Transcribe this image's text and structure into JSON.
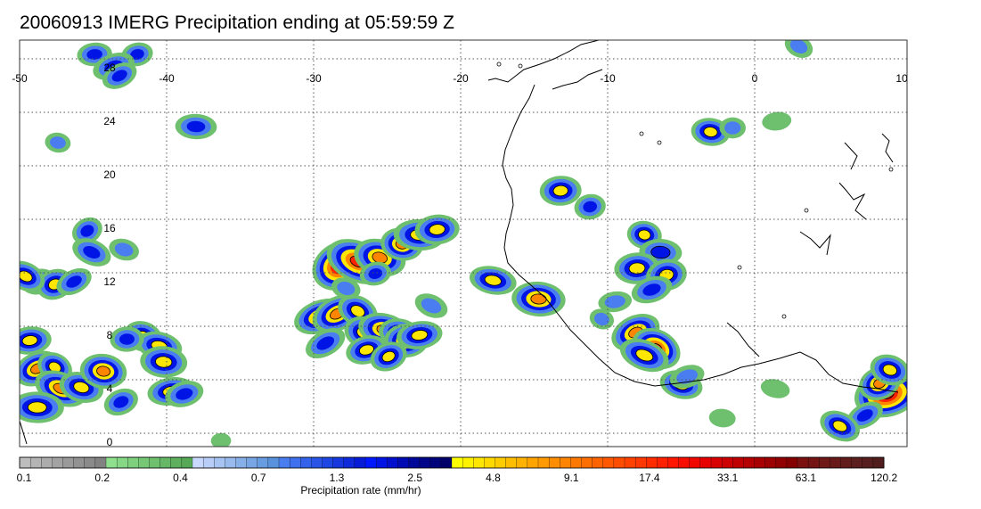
{
  "title": "20060913 IMERG Precipitation ending at 05:59:59 Z",
  "map": {
    "lon_range": [
      -50,
      10
    ],
    "lat_range": [
      -1,
      30
    ],
    "lon_ticks": [
      {
        "value": -50,
        "label": "-50"
      },
      {
        "value": -40,
        "label": "-40"
      },
      {
        "value": -30,
        "label": "-30"
      },
      {
        "value": -20,
        "label": "-20"
      },
      {
        "value": -10,
        "label": "-10"
      },
      {
        "value": 0,
        "label": "0"
      },
      {
        "value": 10,
        "label": "10"
      }
    ],
    "lat_ticks": [
      {
        "value": 0,
        "label": "0"
      },
      {
        "value": 4,
        "label": "4"
      },
      {
        "value": 8,
        "label": "8"
      },
      {
        "value": 12,
        "label": "12"
      },
      {
        "value": 16,
        "label": "16"
      },
      {
        "value": 20,
        "label": "20"
      },
      {
        "value": 24,
        "label": "24"
      },
      {
        "value": 28,
        "label": "28"
      }
    ],
    "grid": "dotted",
    "coastline_color": "#000000"
  },
  "colorbar": {
    "title": "Precipitation rate (mm/hr)",
    "tick_labels": [
      "0.1",
      "0.2",
      "0.4",
      "0.7",
      "1.3",
      "2.5",
      "4.8",
      "9.1",
      "17.4",
      "33.1",
      "63.1",
      "120.2"
    ],
    "colors": [
      "#bdbdbd",
      "#b4b4b4",
      "#acacac",
      "#a3a3a3",
      "#9a9a9a",
      "#929292",
      "#8a8a8a",
      "#828282",
      "#8ee08e",
      "#86d886",
      "#7ed07e",
      "#76c876",
      "#6ec06e",
      "#66b866",
      "#5eb05e",
      "#56a856",
      "#c8d8ff",
      "#b8cef8",
      "#a8c4f2",
      "#98baec",
      "#88b0e8",
      "#78a6e4",
      "#689ce0",
      "#5892dc",
      "#4a7ef0",
      "#3f70ee",
      "#3462ea",
      "#2954e6",
      "#1e46e2",
      "#1638de",
      "#0e2ada",
      "#061cd6",
      "#0018ff",
      "#0014e6",
      "#0010cc",
      "#000cb3",
      "#00089a",
      "#00068a",
      "#00047a",
      "#00026a",
      "#ffff00",
      "#fff200",
      "#ffe600",
      "#ffd900",
      "#ffcc00",
      "#ffbf00",
      "#ffb200",
      "#ffa500",
      "#ff9a00",
      "#ff8f00",
      "#ff8400",
      "#ff7900",
      "#ff6e00",
      "#ff6300",
      "#ff5800",
      "#ff4d00",
      "#ff4200",
      "#ff3700",
      "#ff2c00",
      "#ff2100",
      "#ff1600",
      "#f80e00",
      "#f00700",
      "#e80000",
      "#d80000",
      "#cc0000",
      "#c00000",
      "#b40000",
      "#a80000",
      "#9c0000",
      "#900000",
      "#840000",
      "#7a1010",
      "#741414",
      "#6e1818",
      "#681a1a",
      "#621c1c",
      "#5c1e1e",
      "#561e1e",
      "#501c1c"
    ]
  },
  "precip_cells": [
    {
      "lon": -28.2,
      "lat": 13.2,
      "rate": 40
    },
    {
      "lon": -27.0,
      "lat": 13.5,
      "rate": 18
    },
    {
      "lon": -25.5,
      "lat": 13.8,
      "rate": 10
    },
    {
      "lon": -24.0,
      "lat": 14.8,
      "rate": 6
    },
    {
      "lon": -22.8,
      "lat": 15.5,
      "rate": 5
    },
    {
      "lon": -21.6,
      "lat": 15.9,
      "rate": 4
    },
    {
      "lon": -25.8,
      "lat": 12.6,
      "rate": 1.5
    },
    {
      "lon": -29.5,
      "lat": 9.4,
      "rate": 6
    },
    {
      "lon": -28.4,
      "lat": 9.6,
      "rate": 7
    },
    {
      "lon": -27.0,
      "lat": 9.8,
      "rate": 4
    },
    {
      "lon": -26.6,
      "lat": 8.2,
      "rate": 5
    },
    {
      "lon": -25.2,
      "lat": 8.4,
      "rate": 6
    },
    {
      "lon": -24.2,
      "lat": 8.2,
      "rate": 3
    },
    {
      "lon": -23.7,
      "lat": 7.6,
      "rate": 7
    },
    {
      "lon": -22.8,
      "lat": 8.0,
      "rate": 3
    },
    {
      "lon": -26.4,
      "lat": 6.9,
      "rate": 3
    },
    {
      "lon": -24.9,
      "lat": 6.4,
      "rate": 3
    },
    {
      "lon": -29.2,
      "lat": 7.4,
      "rate": 2
    },
    {
      "lon": -22.0,
      "lat": 10.2,
      "rate": 1.2
    },
    {
      "lon": -27.8,
      "lat": 11.5,
      "rate": 1
    },
    {
      "lon": -7.5,
      "lat": 15.5,
      "rate": 3
    },
    {
      "lon": -6.4,
      "lat": 14.2,
      "rate": 2.5
    },
    {
      "lon": -8.0,
      "lat": 13.0,
      "rate": 5
    },
    {
      "lon": -6.0,
      "lat": 12.5,
      "rate": 5
    },
    {
      "lon": -7.0,
      "lat": 11.4,
      "rate": 2
    },
    {
      "lon": -8.1,
      "lat": 8.2,
      "rate": 7
    },
    {
      "lon": -6.7,
      "lat": 7.0,
      "rate": 12
    },
    {
      "lon": -7.5,
      "lat": 6.5,
      "rate": 4
    },
    {
      "lon": -5.0,
      "lat": 4.3,
      "rate": 3
    },
    {
      "lon": -3.0,
      "lat": 23.2,
      "rate": 3
    },
    {
      "lon": -1.5,
      "lat": 23.5,
      "rate": 1
    },
    {
      "lon": 1.5,
      "lat": 24.0,
      "rate": 0.6
    },
    {
      "lon": 9.0,
      "lat": 3.6,
      "rate": 35
    },
    {
      "lon": 8.5,
      "lat": 4.4,
      "rate": 6
    },
    {
      "lon": 7.5,
      "lat": 2.0,
      "rate": 1.5
    },
    {
      "lon": 5.8,
      "lat": 1.2,
      "rate": 3
    },
    {
      "lon": 9.2,
      "lat": 5.4,
      "rate": 4
    },
    {
      "lon": -17.8,
      "lat": 12.1,
      "rate": 3
    },
    {
      "lon": -14.7,
      "lat": 10.7,
      "rate": 8
    },
    {
      "lon": -13.2,
      "lat": 18.8,
      "rate": 4
    },
    {
      "lon": -11.2,
      "lat": 17.6,
      "rate": 2
    },
    {
      "lon": -4.6,
      "lat": 4.9,
      "rate": 1.2
    },
    {
      "lon": -48.8,
      "lat": 5.5,
      "rate": 6
    },
    {
      "lon": -47.6,
      "lat": 5.6,
      "rate": 3
    },
    {
      "lon": -47.2,
      "lat": 4.0,
      "rate": 6
    },
    {
      "lon": -45.8,
      "lat": 4.1,
      "rate": 4
    },
    {
      "lon": -44.3,
      "lat": 5.3,
      "rate": 8
    },
    {
      "lon": -48.8,
      "lat": 2.6,
      "rate": 5
    },
    {
      "lon": -49.3,
      "lat": 7.6,
      "rate": 3
    },
    {
      "lon": -48.7,
      "lat": 12.0,
      "rate": 2
    },
    {
      "lon": -47.6,
      "lat": 11.8,
      "rate": 4
    },
    {
      "lon": -46.3,
      "lat": 12.0,
      "rate": 1.5
    },
    {
      "lon": -49.6,
      "lat": 12.4,
      "rate": 3
    },
    {
      "lon": -41.6,
      "lat": 7.9,
      "rate": 4
    },
    {
      "lon": -40.5,
      "lat": 7.2,
      "rate": 3
    },
    {
      "lon": -40.2,
      "lat": 6.0,
      "rate": 5
    },
    {
      "lon": -42.7,
      "lat": 7.7,
      "rate": 2
    },
    {
      "lon": -39.7,
      "lat": 3.8,
      "rate": 3
    },
    {
      "lon": -38.8,
      "lat": 3.6,
      "rate": 2
    },
    {
      "lon": -43.1,
      "lat": 3.0,
      "rate": 2
    },
    {
      "lon": -45.4,
      "lat": 15.8,
      "rate": 2
    },
    {
      "lon": -45.1,
      "lat": 14.2,
      "rate": 2
    },
    {
      "lon": -42.9,
      "lat": 14.4,
      "rate": 1
    },
    {
      "lon": -47.4,
      "lat": 22.4,
      "rate": 0.8
    },
    {
      "lon": -38.0,
      "lat": 23.6,
      "rate": 2
    },
    {
      "lon": -44.9,
      "lat": 29.0,
      "rate": 1.5
    },
    {
      "lon": -42.0,
      "lat": 29.0,
      "rate": 1.5
    },
    {
      "lon": -43.6,
      "lat": 28.1,
      "rate": 2
    },
    {
      "lon": -43.2,
      "lat": 27.4,
      "rate": 1.5
    },
    {
      "lon": 3.0,
      "lat": 29.6,
      "rate": 1
    },
    {
      "lon": -10.4,
      "lat": 9.2,
      "rate": 0.8
    },
    {
      "lon": 1.4,
      "lat": 4.0,
      "rate": 0.6
    },
    {
      "lon": -2.2,
      "lat": 1.8,
      "rate": 0.6
    },
    {
      "lon": -36.3,
      "lat": 0.1,
      "rate": 0.3
    },
    {
      "lon": -9.5,
      "lat": 10.5,
      "rate": 0.9
    }
  ]
}
